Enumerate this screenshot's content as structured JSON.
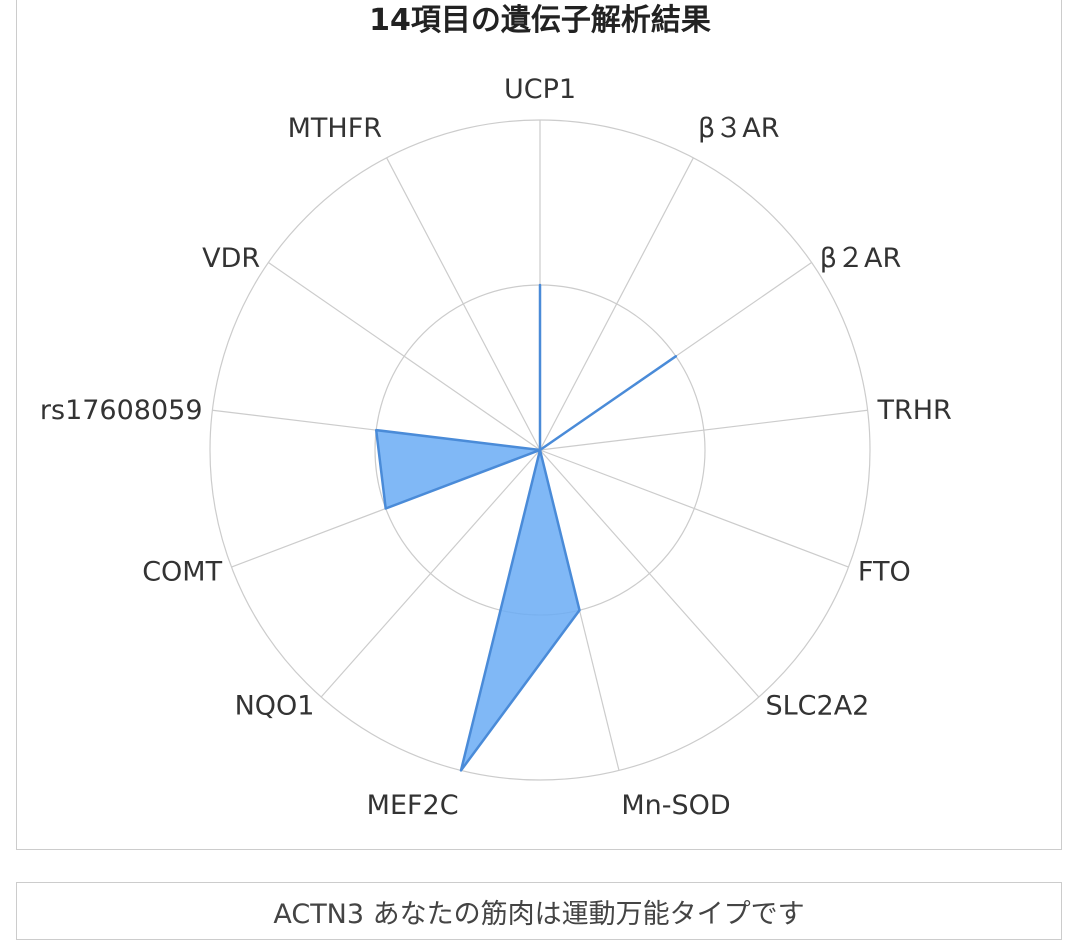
{
  "chart_data": {
    "type": "radar",
    "title": "14項目の遺伝子解析結果",
    "categories": [
      "UCP1",
      "β３AR",
      "β２AR",
      "TRHR",
      "FTO",
      "SLC2A2",
      "Mn-SOD",
      "MEF2C",
      "NQO1",
      "COMT",
      "rs17608059",
      "VDR",
      "MTHFR"
    ],
    "values": [
      0.5,
      0,
      0.5,
      0,
      0,
      0,
      0.5,
      1,
      0,
      0.5,
      0.5,
      0,
      0
    ],
    "rlim": [
      0,
      1
    ],
    "grid_rings": [
      0.5,
      1
    ],
    "grid": true,
    "legend": false,
    "colors": {
      "fill": "#6aacf5",
      "stroke": "#4a8bd8",
      "grid": "#cccccc"
    }
  },
  "result_text": "ACTN3 あなたの筋肉は運動万能タイプです"
}
